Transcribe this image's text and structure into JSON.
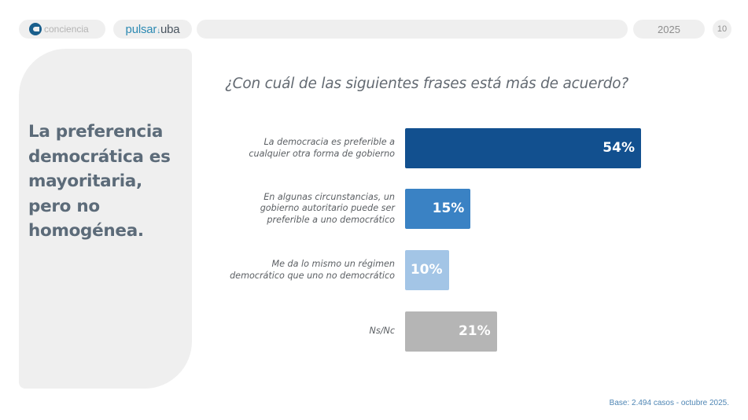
{
  "header": {
    "logo1": {
      "icon": "conciencia-c-icon",
      "text": "conciencia",
      "color": "#1a5f8c"
    },
    "logo2": {
      "text": "pulsar+uba",
      "color": "#2d8ab3"
    },
    "year": "2025",
    "page_number": "10"
  },
  "side_panel": {
    "title_lines": [
      "La preferencia",
      "democrática es",
      "mayoritaria,",
      "pero no",
      "homogénea."
    ]
  },
  "question": "¿Con cuál de las siguientes frases está más de acuerdo?",
  "footnote": "Base: 2.494 casos - octubre 2025.",
  "chart_data": {
    "type": "bar",
    "orientation": "horizontal",
    "title": "¿Con cuál de las siguientes frases está más de acuerdo?",
    "xlabel": "",
    "ylabel": "",
    "unit": "%",
    "xlim": [
      0,
      100
    ],
    "grid": false,
    "legend": "none",
    "categories": [
      [
        "La democracia es preferible a",
        "cualquier otra forma de gobierno"
      ],
      [
        "En algunas circunstancias, un",
        "gobierno autoritario puede ser",
        "preferible a uno democrático"
      ],
      [
        "Me da lo mismo un régimen",
        "democrático que uno no democrático"
      ],
      [
        "Ns/Nc"
      ]
    ],
    "values": [
      54,
      15,
      10,
      21
    ],
    "value_labels": [
      "54%",
      "15%",
      "10%",
      "21%"
    ],
    "colors": [
      "#12508f",
      "#3a82c4",
      "#a3c5e6",
      "#b5b5b5"
    ]
  }
}
